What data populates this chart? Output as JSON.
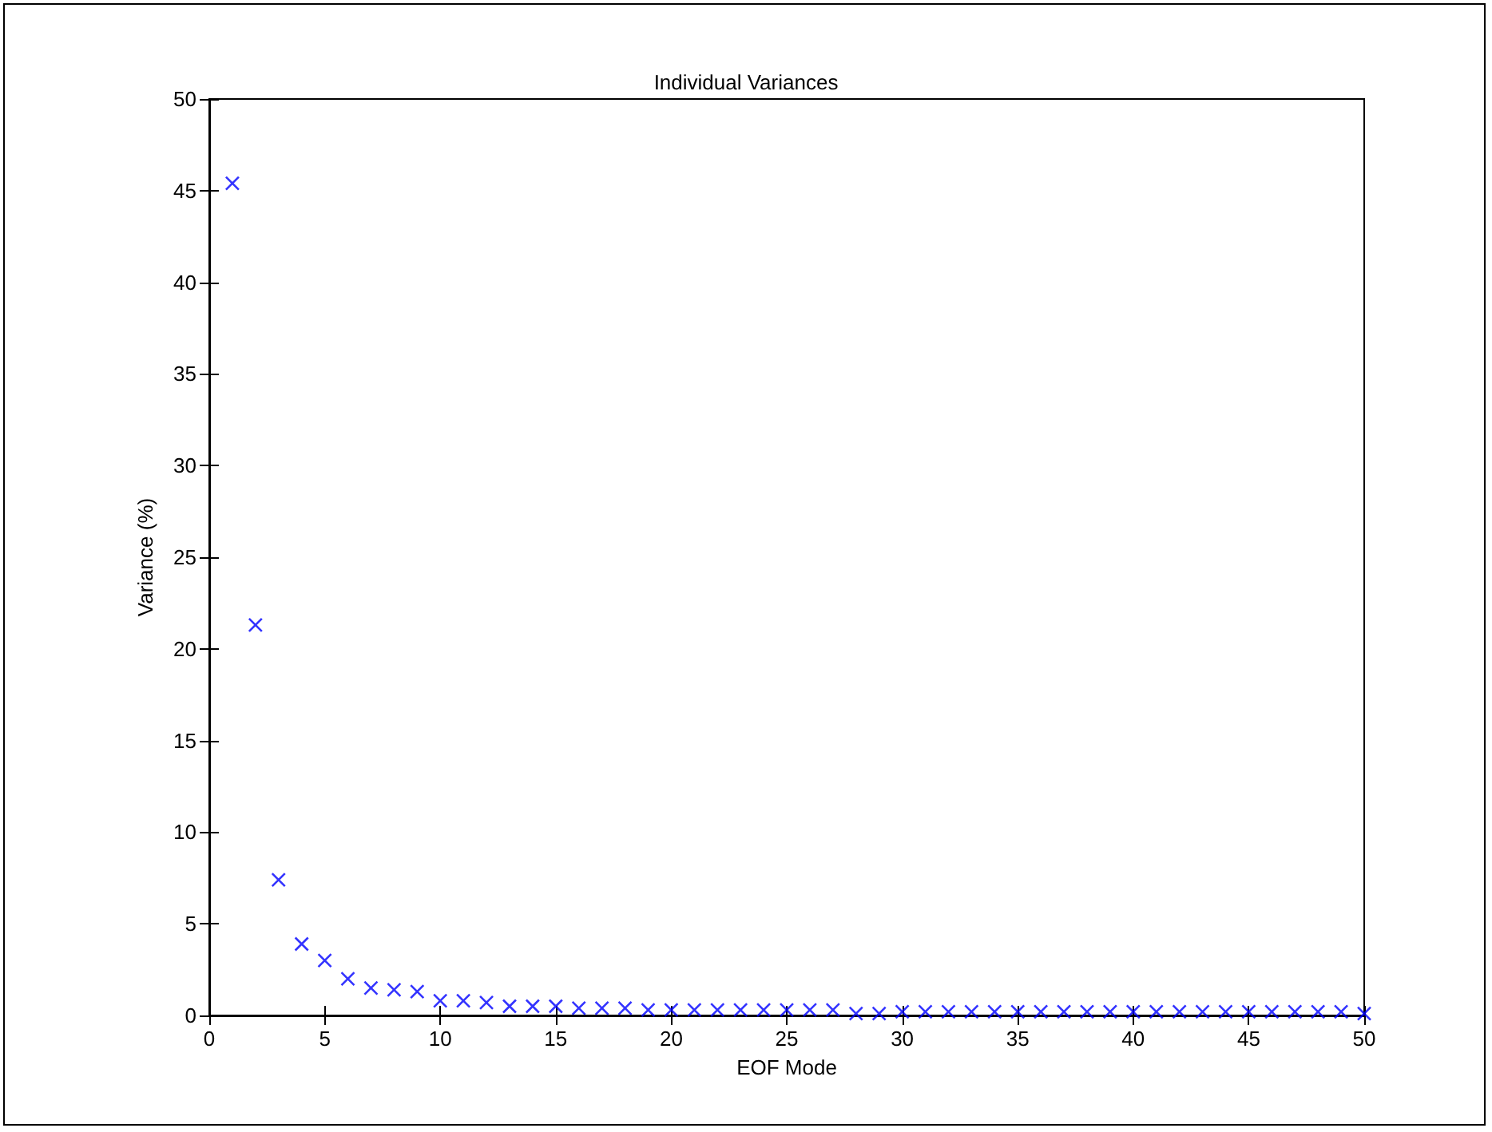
{
  "chart_data": {
    "type": "scatter",
    "title": "Individual Variances",
    "xlabel": "EOF Mode",
    "ylabel": "Variance (%)",
    "x": [
      1,
      2,
      3,
      4,
      5,
      6,
      7,
      8,
      9,
      10,
      11,
      12,
      13,
      14,
      15,
      16,
      17,
      18,
      19,
      20,
      21,
      22,
      23,
      24,
      25,
      26,
      27,
      28,
      29,
      30,
      31,
      32,
      33,
      34,
      35,
      36,
      37,
      38,
      39,
      40,
      41,
      42,
      43,
      44,
      45,
      46,
      47,
      48,
      49,
      50
    ],
    "series": [
      {
        "color": "#0000ff",
        "values": [
          45.4,
          21.3,
          7.4,
          3.9,
          3.0,
          2.0,
          1.5,
          1.4,
          1.3,
          0.8,
          0.8,
          0.7,
          0.5,
          0.5,
          0.5,
          0.4,
          0.4,
          0.4,
          0.3,
          0.3,
          0.3,
          0.3,
          0.3,
          0.3,
          0.3,
          0.3,
          0.3,
          0.1,
          0.1,
          0.2,
          0.2,
          0.2,
          0.2,
          0.2,
          0.2,
          0.2,
          0.2,
          0.2,
          0.2,
          0.2,
          0.2,
          0.2,
          0.2,
          0.2,
          0.2,
          0.2,
          0.2,
          0.2,
          0.2,
          0.1
        ]
      }
    ],
    "xlim": [
      0,
      50
    ],
    "xticks": [
      0,
      5,
      10,
      15,
      20,
      25,
      30,
      35,
      40,
      45,
      50
    ],
    "ylim": [
      0,
      50
    ],
    "yticks": [
      0,
      5,
      10,
      15,
      20,
      25,
      30,
      35,
      40,
      45,
      50
    ],
    "marker": "cross"
  }
}
